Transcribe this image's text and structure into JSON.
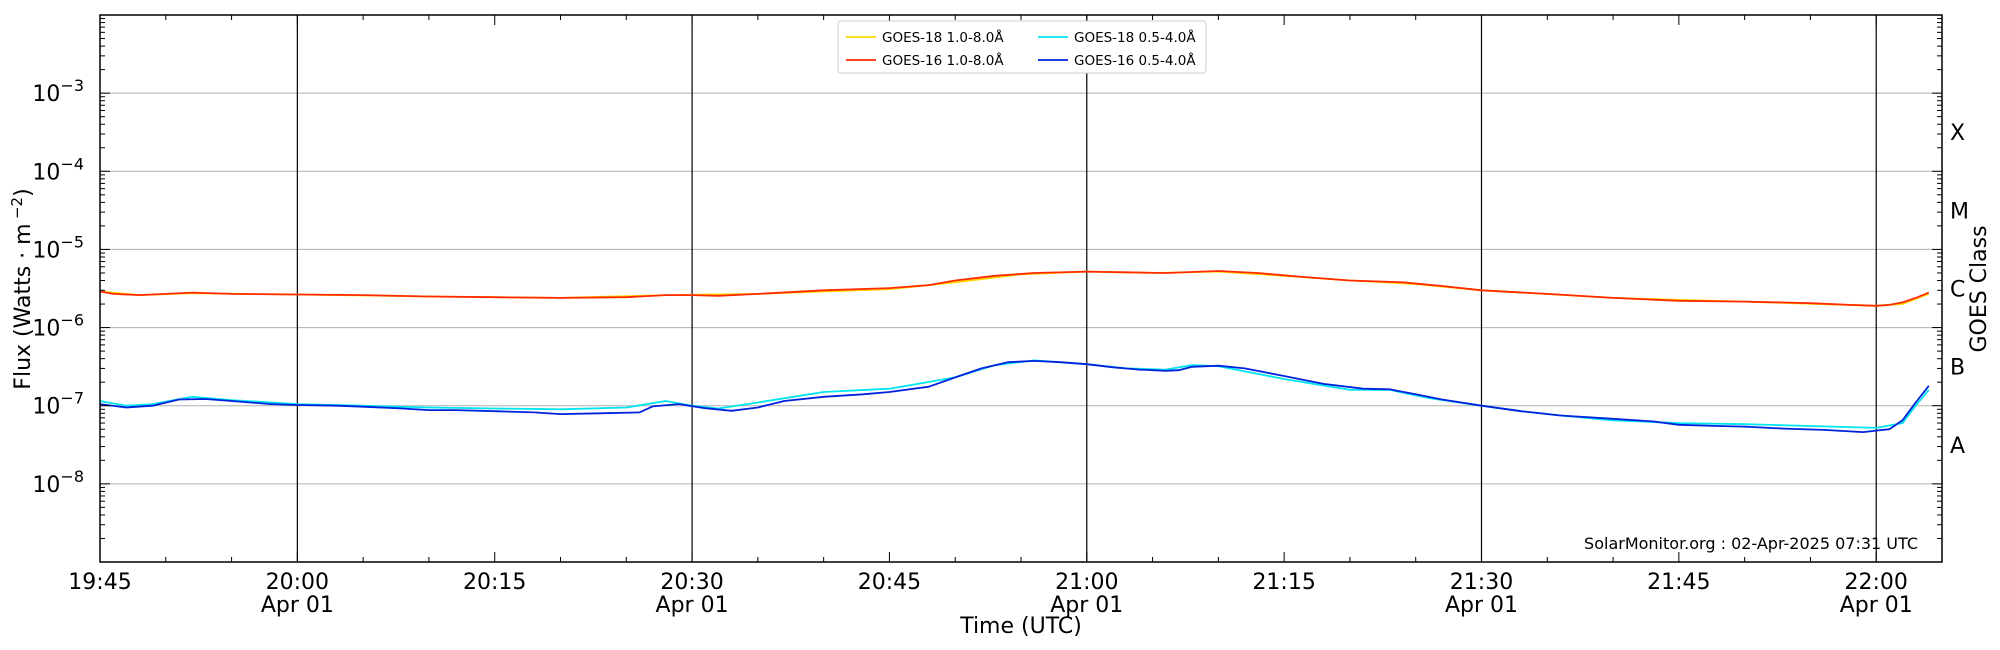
{
  "chart_data": {
    "type": "line",
    "xlabel": "Time (UTC)",
    "ylabel": "Flux (Watts · m⁻²)",
    "y2label": "GOES Class",
    "y_scale": "log",
    "ylim": [
      1e-09,
      0.01
    ],
    "xlim": [
      "2025-04-01 19:45",
      "2025-04-01 22:05"
    ],
    "grid": "horizontal at decades",
    "vertical_lines": [
      "20:00",
      "20:30",
      "21:00",
      "21:30",
      "22:00"
    ],
    "legend_position": "top-center",
    "x_ticks": [
      {
        "t": "19:45",
        "line1": "19:45",
        "line2": ""
      },
      {
        "t": "20:00",
        "line1": "20:00",
        "line2": "Apr 01"
      },
      {
        "t": "20:15",
        "line1": "20:15",
        "line2": ""
      },
      {
        "t": "20:30",
        "line1": "20:30",
        "line2": "Apr 01"
      },
      {
        "t": "20:45",
        "line1": "20:45",
        "line2": ""
      },
      {
        "t": "21:00",
        "line1": "21:00",
        "line2": "Apr 01"
      },
      {
        "t": "21:15",
        "line1": "21:15",
        "line2": ""
      },
      {
        "t": "21:30",
        "line1": "21:30",
        "line2": "Apr 01"
      },
      {
        "t": "21:45",
        "line1": "21:45",
        "line2": ""
      },
      {
        "t": "22:00",
        "line1": "22:00",
        "line2": "Apr 01"
      }
    ],
    "y_ticks": [
      {
        "exp": -8,
        "base": "10",
        "sup": "−8"
      },
      {
        "exp": -7,
        "base": "10",
        "sup": "−7"
      },
      {
        "exp": -6,
        "base": "10",
        "sup": "−6"
      },
      {
        "exp": -5,
        "base": "10",
        "sup": "−5"
      },
      {
        "exp": -4,
        "base": "10",
        "sup": "−4"
      },
      {
        "exp": -3,
        "base": "10",
        "sup": "−3"
      }
    ],
    "goes_classes": [
      {
        "label": "A",
        "exp": -8
      },
      {
        "label": "B",
        "exp": -7
      },
      {
        "label": "C",
        "exp": -6
      },
      {
        "label": "M",
        "exp": -5
      },
      {
        "label": "X",
        "exp": -4
      }
    ],
    "series": [
      {
        "name": "GOES-18 1.0-8.0Å",
        "color": "#ffd700",
        "points": [
          [
            "19:45",
            2.9e-06
          ],
          [
            "19:48",
            2.6e-06
          ],
          [
            "19:52",
            2.75e-06
          ],
          [
            "20:00",
            2.65e-06
          ],
          [
            "20:10",
            2.5e-06
          ],
          [
            "20:20",
            2.4e-06
          ],
          [
            "20:28",
            2.6e-06
          ],
          [
            "20:35",
            2.7e-06
          ],
          [
            "20:45",
            3.1e-06
          ],
          [
            "20:50",
            3.8e-06
          ],
          [
            "20:55",
            4.8e-06
          ],
          [
            "21:00",
            5.2e-06
          ],
          [
            "21:05",
            5e-06
          ],
          [
            "21:10",
            5.2e-06
          ],
          [
            "21:15",
            4.6e-06
          ],
          [
            "21:20",
            4e-06
          ],
          [
            "21:25",
            3.6e-06
          ],
          [
            "21:30",
            3e-06
          ],
          [
            "21:40",
            2.4e-06
          ],
          [
            "21:50",
            2.15e-06
          ],
          [
            "22:00",
            1.9e-06
          ],
          [
            "22:02",
            2e-06
          ],
          [
            "22:04",
            2.7e-06
          ]
        ]
      },
      {
        "name": "GOES-16 1.0-8.0Å",
        "color": "#ff2a00",
        "points": [
          [
            "19:45",
            2.9e-06
          ],
          [
            "19:46",
            2.7e-06
          ],
          [
            "19:48",
            2.6e-06
          ],
          [
            "19:50",
            2.7e-06
          ],
          [
            "19:52",
            2.8e-06
          ],
          [
            "19:55",
            2.7e-06
          ],
          [
            "20:00",
            2.65e-06
          ],
          [
            "20:05",
            2.6e-06
          ],
          [
            "20:10",
            2.5e-06
          ],
          [
            "20:15",
            2.45e-06
          ],
          [
            "20:20",
            2.4e-06
          ],
          [
            "20:25",
            2.45e-06
          ],
          [
            "20:28",
            2.6e-06
          ],
          [
            "20:30",
            2.6e-06
          ],
          [
            "20:32",
            2.55e-06
          ],
          [
            "20:35",
            2.7e-06
          ],
          [
            "20:40",
            3e-06
          ],
          [
            "20:45",
            3.2e-06
          ],
          [
            "20:48",
            3.5e-06
          ],
          [
            "20:50",
            4e-06
          ],
          [
            "20:53",
            4.6e-06
          ],
          [
            "20:56",
            5e-06
          ],
          [
            "21:00",
            5.2e-06
          ],
          [
            "21:03",
            5.1e-06
          ],
          [
            "21:06",
            5e-06
          ],
          [
            "21:10",
            5.3e-06
          ],
          [
            "21:13",
            5e-06
          ],
          [
            "21:16",
            4.5e-06
          ],
          [
            "21:20",
            4e-06
          ],
          [
            "21:24",
            3.8e-06
          ],
          [
            "21:27",
            3.4e-06
          ],
          [
            "21:30",
            3e-06
          ],
          [
            "21:35",
            2.7e-06
          ],
          [
            "21:40",
            2.4e-06
          ],
          [
            "21:45",
            2.2e-06
          ],
          [
            "21:50",
            2.15e-06
          ],
          [
            "21:55",
            2.05e-06
          ],
          [
            "21:58",
            1.95e-06
          ],
          [
            "22:00",
            1.9e-06
          ],
          [
            "22:01",
            1.95e-06
          ],
          [
            "22:02",
            2.1e-06
          ],
          [
            "22:03",
            2.4e-06
          ],
          [
            "22:04",
            2.8e-06
          ]
        ]
      },
      {
        "name": "GOES-18 0.5-4.0Å",
        "color": "#00e5ee",
        "points": [
          [
            "19:45",
            1.15e-07
          ],
          [
            "19:47",
            1e-07
          ],
          [
            "19:49",
            1.05e-07
          ],
          [
            "19:52",
            1.3e-07
          ],
          [
            "19:55",
            1.18e-07
          ],
          [
            "20:00",
            1.05e-07
          ],
          [
            "20:05",
            1e-07
          ],
          [
            "20:10",
            9.5e-08
          ],
          [
            "20:15",
            9.2e-08
          ],
          [
            "20:20",
            9e-08
          ],
          [
            "20:25",
            9.5e-08
          ],
          [
            "20:28",
            1.15e-07
          ],
          [
            "20:30",
            1e-07
          ],
          [
            "20:32",
            9.2e-08
          ],
          [
            "20:35",
            1.1e-07
          ],
          [
            "20:40",
            1.5e-07
          ],
          [
            "20:45",
            1.65e-07
          ],
          [
            "20:50",
            2.3e-07
          ],
          [
            "20:53",
            3.3e-07
          ],
          [
            "20:56",
            3.8e-07
          ],
          [
            "21:00",
            3.4e-07
          ],
          [
            "21:03",
            3e-07
          ],
          [
            "21:06",
            2.9e-07
          ],
          [
            "21:08",
            3.3e-07
          ],
          [
            "21:10",
            3.2e-07
          ],
          [
            "21:15",
            2.2e-07
          ],
          [
            "21:20",
            1.6e-07
          ],
          [
            "21:23",
            1.6e-07
          ],
          [
            "21:26",
            1.25e-07
          ],
          [
            "21:30",
            1e-07
          ],
          [
            "21:33",
            8.5e-08
          ],
          [
            "21:36",
            7.5e-08
          ],
          [
            "21:40",
            6.5e-08
          ],
          [
            "21:45",
            6e-08
          ],
          [
            "21:50",
            5.8e-08
          ],
          [
            "21:55",
            5.5e-08
          ],
          [
            "22:00",
            5.2e-08
          ],
          [
            "22:02",
            6e-08
          ],
          [
            "22:03",
            1e-07
          ],
          [
            "22:04",
            1.6e-07
          ]
        ]
      },
      {
        "name": "GOES-16 0.5-4.0Å",
        "color": "#0022dd",
        "points": [
          [
            "19:45",
            1.05e-07
          ],
          [
            "19:47",
            9.5e-08
          ],
          [
            "19:49",
            1e-07
          ],
          [
            "19:51",
            1.2e-07
          ],
          [
            "19:53",
            1.22e-07
          ],
          [
            "19:55",
            1.15e-07
          ],
          [
            "19:58",
            1.05e-07
          ],
          [
            "20:00",
            1.02e-07
          ],
          [
            "20:03",
            1e-07
          ],
          [
            "20:05",
            9.7e-08
          ],
          [
            "20:08",
            9.2e-08
          ],
          [
            "20:10",
            8.8e-08
          ],
          [
            "20:12",
            8.8e-08
          ],
          [
            "20:15",
            8.5e-08
          ],
          [
            "20:18",
            8.2e-08
          ],
          [
            "20:20",
            7.8e-08
          ],
          [
            "20:23",
            8e-08
          ],
          [
            "20:26",
            8.2e-08
          ],
          [
            "20:27",
            9.8e-08
          ],
          [
            "20:29",
            1.05e-07
          ],
          [
            "20:31",
            9.3e-08
          ],
          [
            "20:33",
            8.6e-08
          ],
          [
            "20:35",
            9.5e-08
          ],
          [
            "20:37",
            1.15e-07
          ],
          [
            "20:40",
            1.3e-07
          ],
          [
            "20:43",
            1.4e-07
          ],
          [
            "20:45",
            1.5e-07
          ],
          [
            "20:48",
            1.75e-07
          ],
          [
            "20:50",
            2.3e-07
          ],
          [
            "20:52",
            3e-07
          ],
          [
            "20:54",
            3.6e-07
          ],
          [
            "20:56",
            3.75e-07
          ],
          [
            "20:58",
            3.6e-07
          ],
          [
            "21:00",
            3.4e-07
          ],
          [
            "21:02",
            3.1e-07
          ],
          [
            "21:04",
            2.9e-07
          ],
          [
            "21:06",
            2.8e-07
          ],
          [
            "21:07",
            2.85e-07
          ],
          [
            "21:08",
            3.15e-07
          ],
          [
            "21:10",
            3.25e-07
          ],
          [
            "21:12",
            3e-07
          ],
          [
            "21:15",
            2.4e-07
          ],
          [
            "21:18",
            1.9e-07
          ],
          [
            "21:21",
            1.65e-07
          ],
          [
            "21:23",
            1.62e-07
          ],
          [
            "21:25",
            1.4e-07
          ],
          [
            "21:27",
            1.2e-07
          ],
          [
            "21:30",
            1e-07
          ],
          [
            "21:33",
            8.5e-08
          ],
          [
            "21:36",
            7.5e-08
          ],
          [
            "21:40",
            6.8e-08
          ],
          [
            "21:43",
            6.3e-08
          ],
          [
            "21:45",
            5.7e-08
          ],
          [
            "21:48",
            5.5e-08
          ],
          [
            "21:50",
            5.4e-08
          ],
          [
            "21:53",
            5.1e-08
          ],
          [
            "21:56",
            4.9e-08
          ],
          [
            "21:59",
            4.6e-08
          ],
          [
            "22:00",
            4.8e-08
          ],
          [
            "22:01",
            5e-08
          ],
          [
            "22:02",
            6.5e-08
          ],
          [
            "22:03",
            1.1e-07
          ],
          [
            "22:04",
            1.8e-07
          ]
        ]
      }
    ],
    "credit": "SolarMonitor.org : 02-Apr-2025 07:31 UTC"
  }
}
